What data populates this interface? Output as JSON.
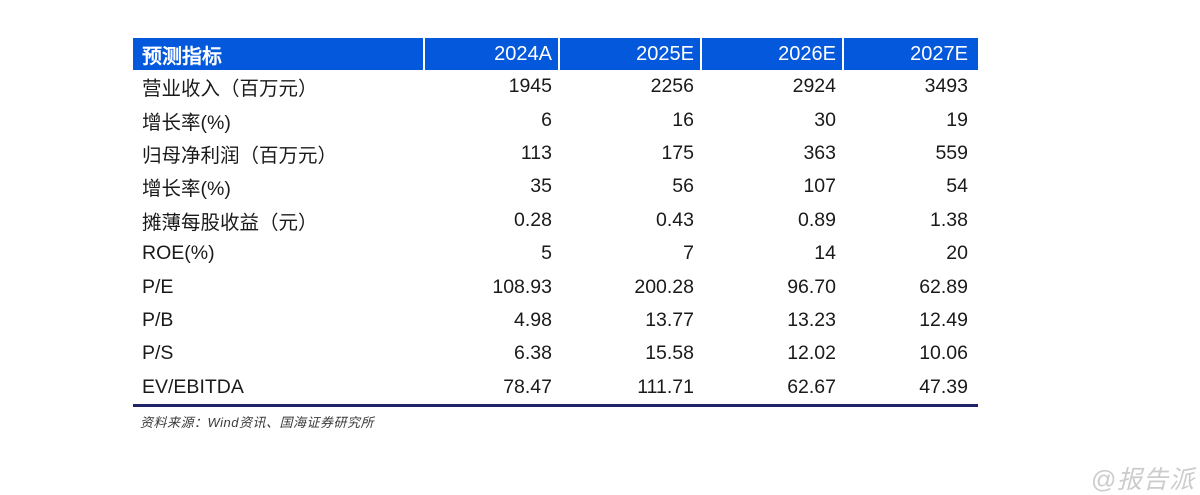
{
  "table": {
    "header": {
      "indicator": "预测指标",
      "years": [
        "2024A",
        "2025E",
        "2026E",
        "2027E"
      ]
    },
    "rows": [
      {
        "label": "营业收入（百万元）",
        "values": [
          "1945",
          "2256",
          "2924",
          "3493"
        ]
      },
      {
        "label": "增长率(%)",
        "values": [
          "6",
          "16",
          "30",
          "19"
        ]
      },
      {
        "label": "归母净利润（百万元）",
        "values": [
          "113",
          "175",
          "363",
          "559"
        ]
      },
      {
        "label": "增长率(%)",
        "values": [
          "35",
          "56",
          "107",
          "54"
        ]
      },
      {
        "label": "摊薄每股收益（元）",
        "values": [
          "0.28",
          "0.43",
          "0.89",
          "1.38"
        ]
      },
      {
        "label": "ROE(%)",
        "values": [
          "5",
          "7",
          "14",
          "20"
        ]
      },
      {
        "label": "P/E",
        "values": [
          "108.93",
          "200.28",
          "96.70",
          "62.89"
        ]
      },
      {
        "label": "P/B",
        "values": [
          "4.98",
          "13.77",
          "13.23",
          "12.49"
        ]
      },
      {
        "label": "P/S",
        "values": [
          "6.38",
          "15.58",
          "12.02",
          "10.06"
        ]
      },
      {
        "label": "EV/EBITDA",
        "values": [
          "78.47",
          "111.71",
          "62.67",
          "47.39"
        ]
      }
    ]
  },
  "footer": {
    "source": "资料来源：Wind资讯、国海证券研究所"
  },
  "watermark": "@报告派",
  "colors": {
    "header_bg": "#0458db",
    "header_text": "#ffffff",
    "body_text": "#1a1a1a",
    "bottom_border": "#212368",
    "source_text": "#3a3a3a",
    "watermark_text": "#cccccc"
  }
}
